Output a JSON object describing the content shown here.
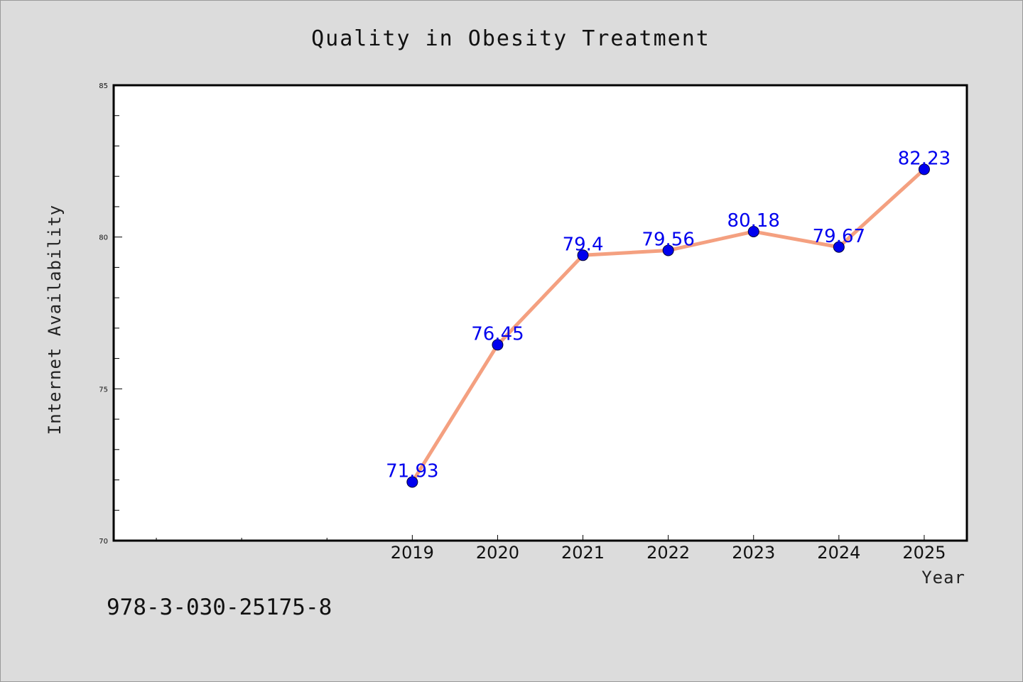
{
  "footer_code": "978-3-030-25175-8",
  "colors": {
    "background": "#dcdcdc",
    "plot_background": "#ffffff",
    "line": "#f4a080",
    "marker": "#0000ee",
    "data_label": "#0000ee"
  },
  "chart_data": {
    "type": "line",
    "title": "Quality in Obesity Treatment",
    "xlabel": "Year",
    "ylabel": "Internet Availability",
    "x": [
      2019,
      2020,
      2021,
      2022,
      2023,
      2024,
      2025
    ],
    "x_tick_labels": [
      "2019",
      "2020",
      "2021",
      "2022",
      "2023",
      "2024",
      "2025"
    ],
    "xlim": [
      2015.5,
      2025.5
    ],
    "ylim": [
      70,
      85
    ],
    "y_major_ticks": [
      70,
      75,
      80,
      85
    ],
    "y_tick_labels": [
      "70",
      "75",
      "80",
      "85"
    ],
    "y_minor_step": 1,
    "x_minor_ticks": [
      2016,
      2017,
      2018
    ],
    "series": [
      {
        "values": [
          71.93,
          76.45,
          79.4,
          79.56,
          80.18,
          79.67,
          82.23
        ],
        "data_labels": [
          "71.93",
          "76.45",
          "79.4",
          "79.56",
          "80.18",
          "79.67",
          "82.23"
        ]
      }
    ],
    "grid": false,
    "legend": "none"
  }
}
